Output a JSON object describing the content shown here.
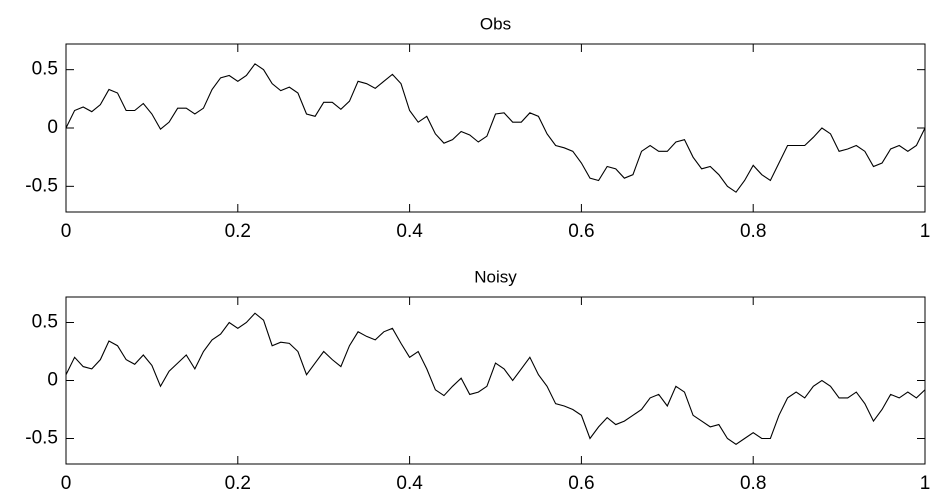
{
  "chart_data": [
    {
      "type": "line",
      "title": "Obs",
      "color": "#000000",
      "x": [
        0,
        0.01,
        0.02,
        0.03,
        0.04,
        0.05,
        0.06,
        0.07,
        0.08,
        0.09,
        0.1,
        0.11,
        0.12,
        0.13,
        0.14,
        0.15,
        0.16,
        0.17,
        0.18,
        0.19,
        0.2,
        0.21,
        0.22,
        0.23,
        0.24,
        0.25,
        0.26,
        0.27,
        0.28,
        0.29,
        0.3,
        0.31,
        0.32,
        0.33,
        0.34,
        0.35,
        0.36,
        0.37,
        0.38,
        0.39,
        0.4,
        0.41,
        0.42,
        0.43,
        0.44,
        0.45,
        0.46,
        0.47,
        0.48,
        0.49,
        0.5,
        0.51,
        0.52,
        0.53,
        0.54,
        0.55,
        0.56,
        0.57,
        0.58,
        0.59,
        0.6,
        0.61,
        0.62,
        0.63,
        0.64,
        0.65,
        0.66,
        0.67,
        0.68,
        0.69,
        0.7,
        0.71,
        0.72,
        0.73,
        0.74,
        0.75,
        0.76,
        0.77,
        0.78,
        0.79,
        0.8,
        0.81,
        0.82,
        0.83,
        0.84,
        0.85,
        0.86,
        0.87,
        0.88,
        0.89,
        0.9,
        0.91,
        0.92,
        0.93,
        0.94,
        0.95,
        0.96,
        0.97,
        0.98,
        0.99,
        1
      ],
      "values": [
        0,
        0.15,
        0.18,
        0.14,
        0.2,
        0.33,
        0.3,
        0.15,
        0.15,
        0.21,
        0.12,
        -0.01,
        0.05,
        0.17,
        0.17,
        0.12,
        0.17,
        0.33,
        0.43,
        0.45,
        0.4,
        0.45,
        0.55,
        0.5,
        0.38,
        0.32,
        0.35,
        0.3,
        0.12,
        0.1,
        0.22,
        0.22,
        0.16,
        0.23,
        0.4,
        0.38,
        0.34,
        0.4,
        0.46,
        0.38,
        0.15,
        0.05,
        0.1,
        -0.05,
        -0.13,
        -0.1,
        -0.03,
        -0.06,
        -0.12,
        -0.07,
        0.12,
        0.13,
        0.05,
        0.05,
        0.13,
        0.1,
        -0.05,
        -0.15,
        -0.17,
        -0.2,
        -0.3,
        -0.43,
        -0.45,
        -0.33,
        -0.35,
        -0.43,
        -0.4,
        -0.2,
        -0.15,
        -0.2,
        -0.2,
        -0.12,
        -0.1,
        -0.25,
        -0.35,
        -0.33,
        -0.4,
        -0.5,
        -0.55,
        -0.45,
        -0.32,
        -0.4,
        -0.45,
        -0.3,
        -0.15,
        -0.15,
        -0.15,
        -0.08,
        0,
        -0.05,
        -0.2,
        -0.18,
        -0.15,
        -0.2,
        -0.33,
        -0.3,
        -0.18,
        -0.15,
        -0.2,
        -0.15,
        0
      ],
      "xlim": [
        0,
        1
      ],
      "xticks": [
        0,
        0.2,
        0.4,
        0.6,
        0.8,
        1
      ],
      "ylim": [
        -0.72,
        0.72
      ],
      "yticks": [
        -0.5,
        0,
        0.5
      ]
    },
    {
      "type": "line",
      "title": "Noisy",
      "color": "#000000",
      "x": [
        0,
        0.01,
        0.02,
        0.03,
        0.04,
        0.05,
        0.06,
        0.07,
        0.08,
        0.09,
        0.1,
        0.11,
        0.12,
        0.13,
        0.14,
        0.15,
        0.16,
        0.17,
        0.18,
        0.19,
        0.2,
        0.21,
        0.22,
        0.23,
        0.24,
        0.25,
        0.26,
        0.27,
        0.28,
        0.29,
        0.3,
        0.31,
        0.32,
        0.33,
        0.34,
        0.35,
        0.36,
        0.37,
        0.38,
        0.39,
        0.4,
        0.41,
        0.42,
        0.43,
        0.44,
        0.45,
        0.46,
        0.47,
        0.48,
        0.49,
        0.5,
        0.51,
        0.52,
        0.53,
        0.54,
        0.55,
        0.56,
        0.57,
        0.58,
        0.59,
        0.6,
        0.61,
        0.62,
        0.63,
        0.64,
        0.65,
        0.66,
        0.67,
        0.68,
        0.69,
        0.7,
        0.71,
        0.72,
        0.73,
        0.74,
        0.75,
        0.76,
        0.77,
        0.78,
        0.79,
        0.8,
        0.81,
        0.82,
        0.83,
        0.84,
        0.85,
        0.86,
        0.87,
        0.88,
        0.89,
        0.9,
        0.91,
        0.92,
        0.93,
        0.94,
        0.95,
        0.96,
        0.97,
        0.98,
        0.99,
        1
      ],
      "values": [
        0.05,
        0.2,
        0.12,
        0.1,
        0.18,
        0.34,
        0.3,
        0.18,
        0.14,
        0.22,
        0.13,
        -0.05,
        0.08,
        0.15,
        0.22,
        0.1,
        0.25,
        0.35,
        0.4,
        0.5,
        0.45,
        0.5,
        0.58,
        0.52,
        0.3,
        0.33,
        0.32,
        0.25,
        0.05,
        0.15,
        0.25,
        0.18,
        0.12,
        0.3,
        0.42,
        0.38,
        0.35,
        0.42,
        0.45,
        0.32,
        0.2,
        0.25,
        0.1,
        -0.08,
        -0.13,
        -0.05,
        0.02,
        -0.12,
        -0.1,
        -0.05,
        0.15,
        0.1,
        0,
        0.1,
        0.2,
        0.05,
        -0.05,
        -0.2,
        -0.22,
        -0.25,
        -0.3,
        -0.5,
        -0.4,
        -0.32,
        -0.38,
        -0.35,
        -0.3,
        -0.25,
        -0.15,
        -0.12,
        -0.22,
        -0.05,
        -0.1,
        -0.3,
        -0.35,
        -0.4,
        -0.38,
        -0.5,
        -0.55,
        -0.5,
        -0.45,
        -0.5,
        -0.5,
        -0.3,
        -0.15,
        -0.1,
        -0.15,
        -0.05,
        0,
        -0.05,
        -0.15,
        -0.15,
        -0.1,
        -0.2,
        -0.35,
        -0.25,
        -0.12,
        -0.15,
        -0.1,
        -0.15,
        -0.08
      ],
      "xlim": [
        0,
        1
      ],
      "xticks": [
        0,
        0.2,
        0.4,
        0.6,
        0.8,
        1
      ],
      "ylim": [
        -0.72,
        0.72
      ],
      "yticks": [
        -0.5,
        0,
        0.5
      ]
    }
  ]
}
